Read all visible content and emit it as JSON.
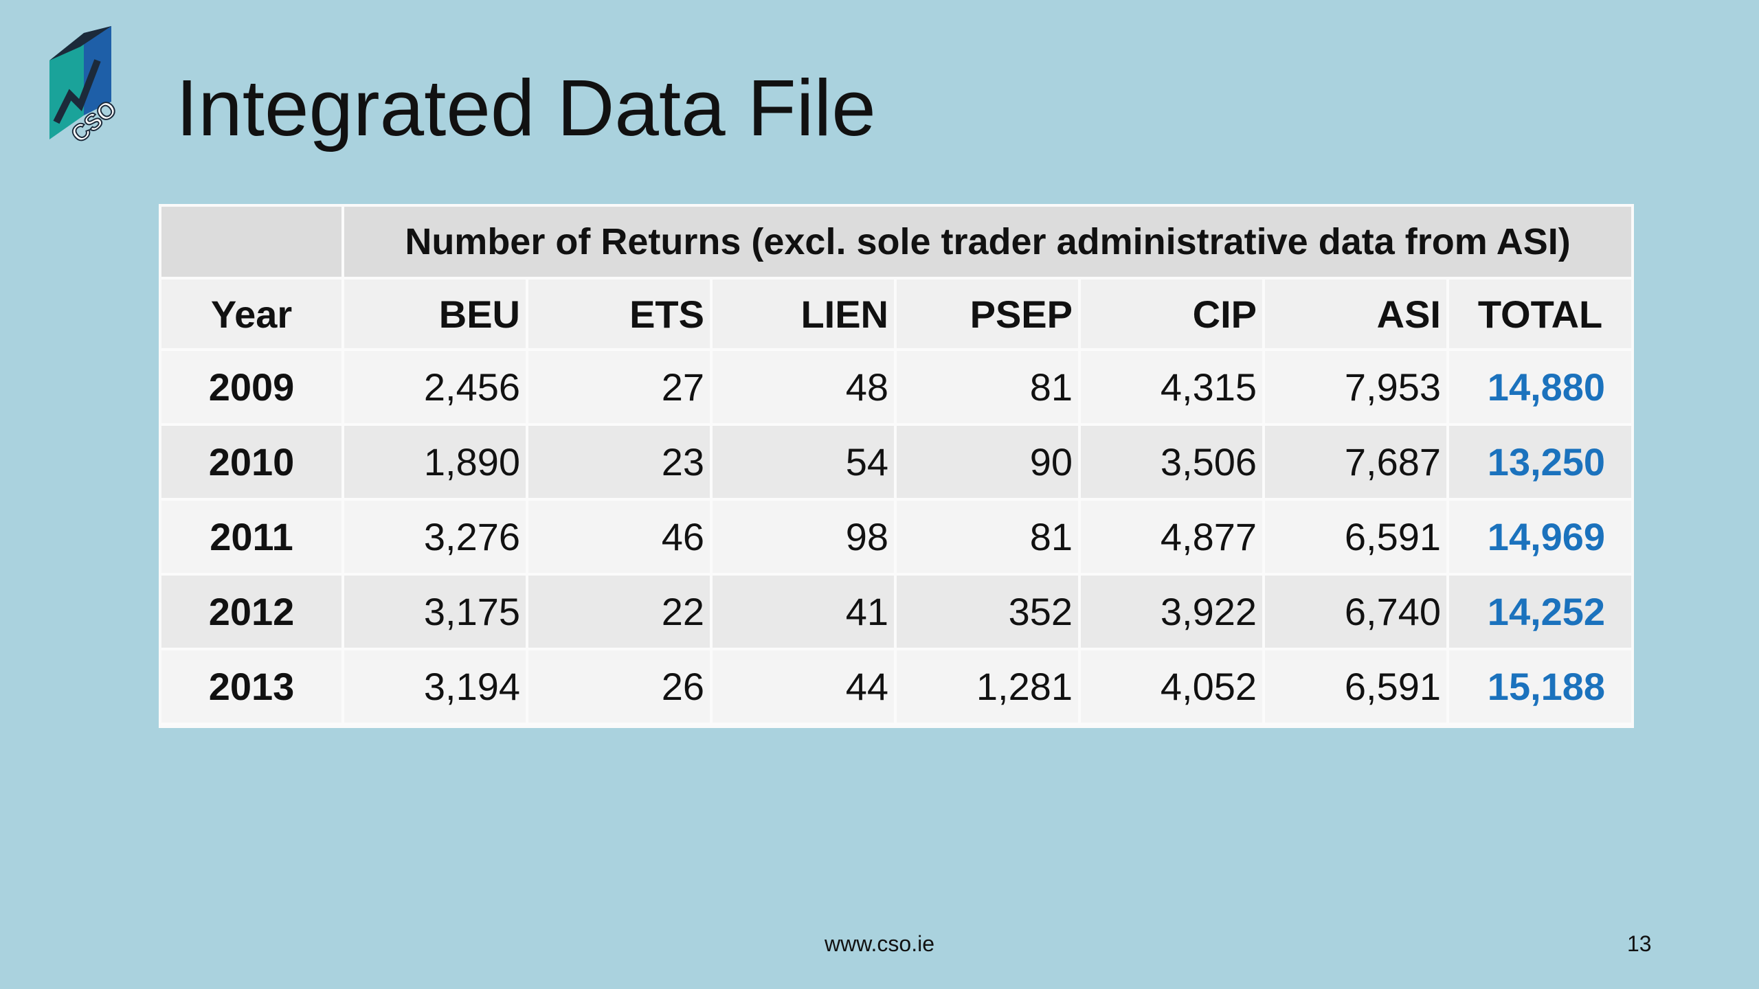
{
  "slide": {
    "title": "Integrated Data File",
    "logo_text": "CSO"
  },
  "table": {
    "super_header": "Number of Returns (excl. sole trader administrative data from ASI)",
    "columns": [
      "Year",
      "BEU",
      "ETS",
      "LIEN",
      "PSEP",
      "CIP",
      "ASI",
      "TOTAL"
    ],
    "rows": [
      {
        "year": "2009",
        "beu": "2,456",
        "ets": "27",
        "lien": "48",
        "psep": "81",
        "cip": "4,315",
        "asi": "7,953",
        "total": "14,880"
      },
      {
        "year": "2010",
        "beu": "1,890",
        "ets": "23",
        "lien": "54",
        "psep": "90",
        "cip": "3,506",
        "asi": "7,687",
        "total": "13,250"
      },
      {
        "year": "2011",
        "beu": "3,276",
        "ets": "46",
        "lien": "98",
        "psep": "81",
        "cip": "4,877",
        "asi": "6,591",
        "total": "14,969"
      },
      {
        "year": "2012",
        "beu": "3,175",
        "ets": "22",
        "lien": "41",
        "psep": "352",
        "cip": "3,922",
        "asi": "6,740",
        "total": "14,252"
      },
      {
        "year": "2013",
        "beu": "3,194",
        "ets": "26",
        "lien": "44",
        "psep": "1,281",
        "cip": "4,052",
        "asi": "6,591",
        "total": "15,188"
      }
    ]
  },
  "footer": {
    "url": "www.cso.ie",
    "page_number": "13"
  },
  "colors": {
    "background": "#aad2de",
    "total_text": "#1b72bd",
    "logo_teal": "#1aa39a",
    "logo_blue": "#1e5fa8",
    "logo_dark": "#1c2a3a"
  }
}
